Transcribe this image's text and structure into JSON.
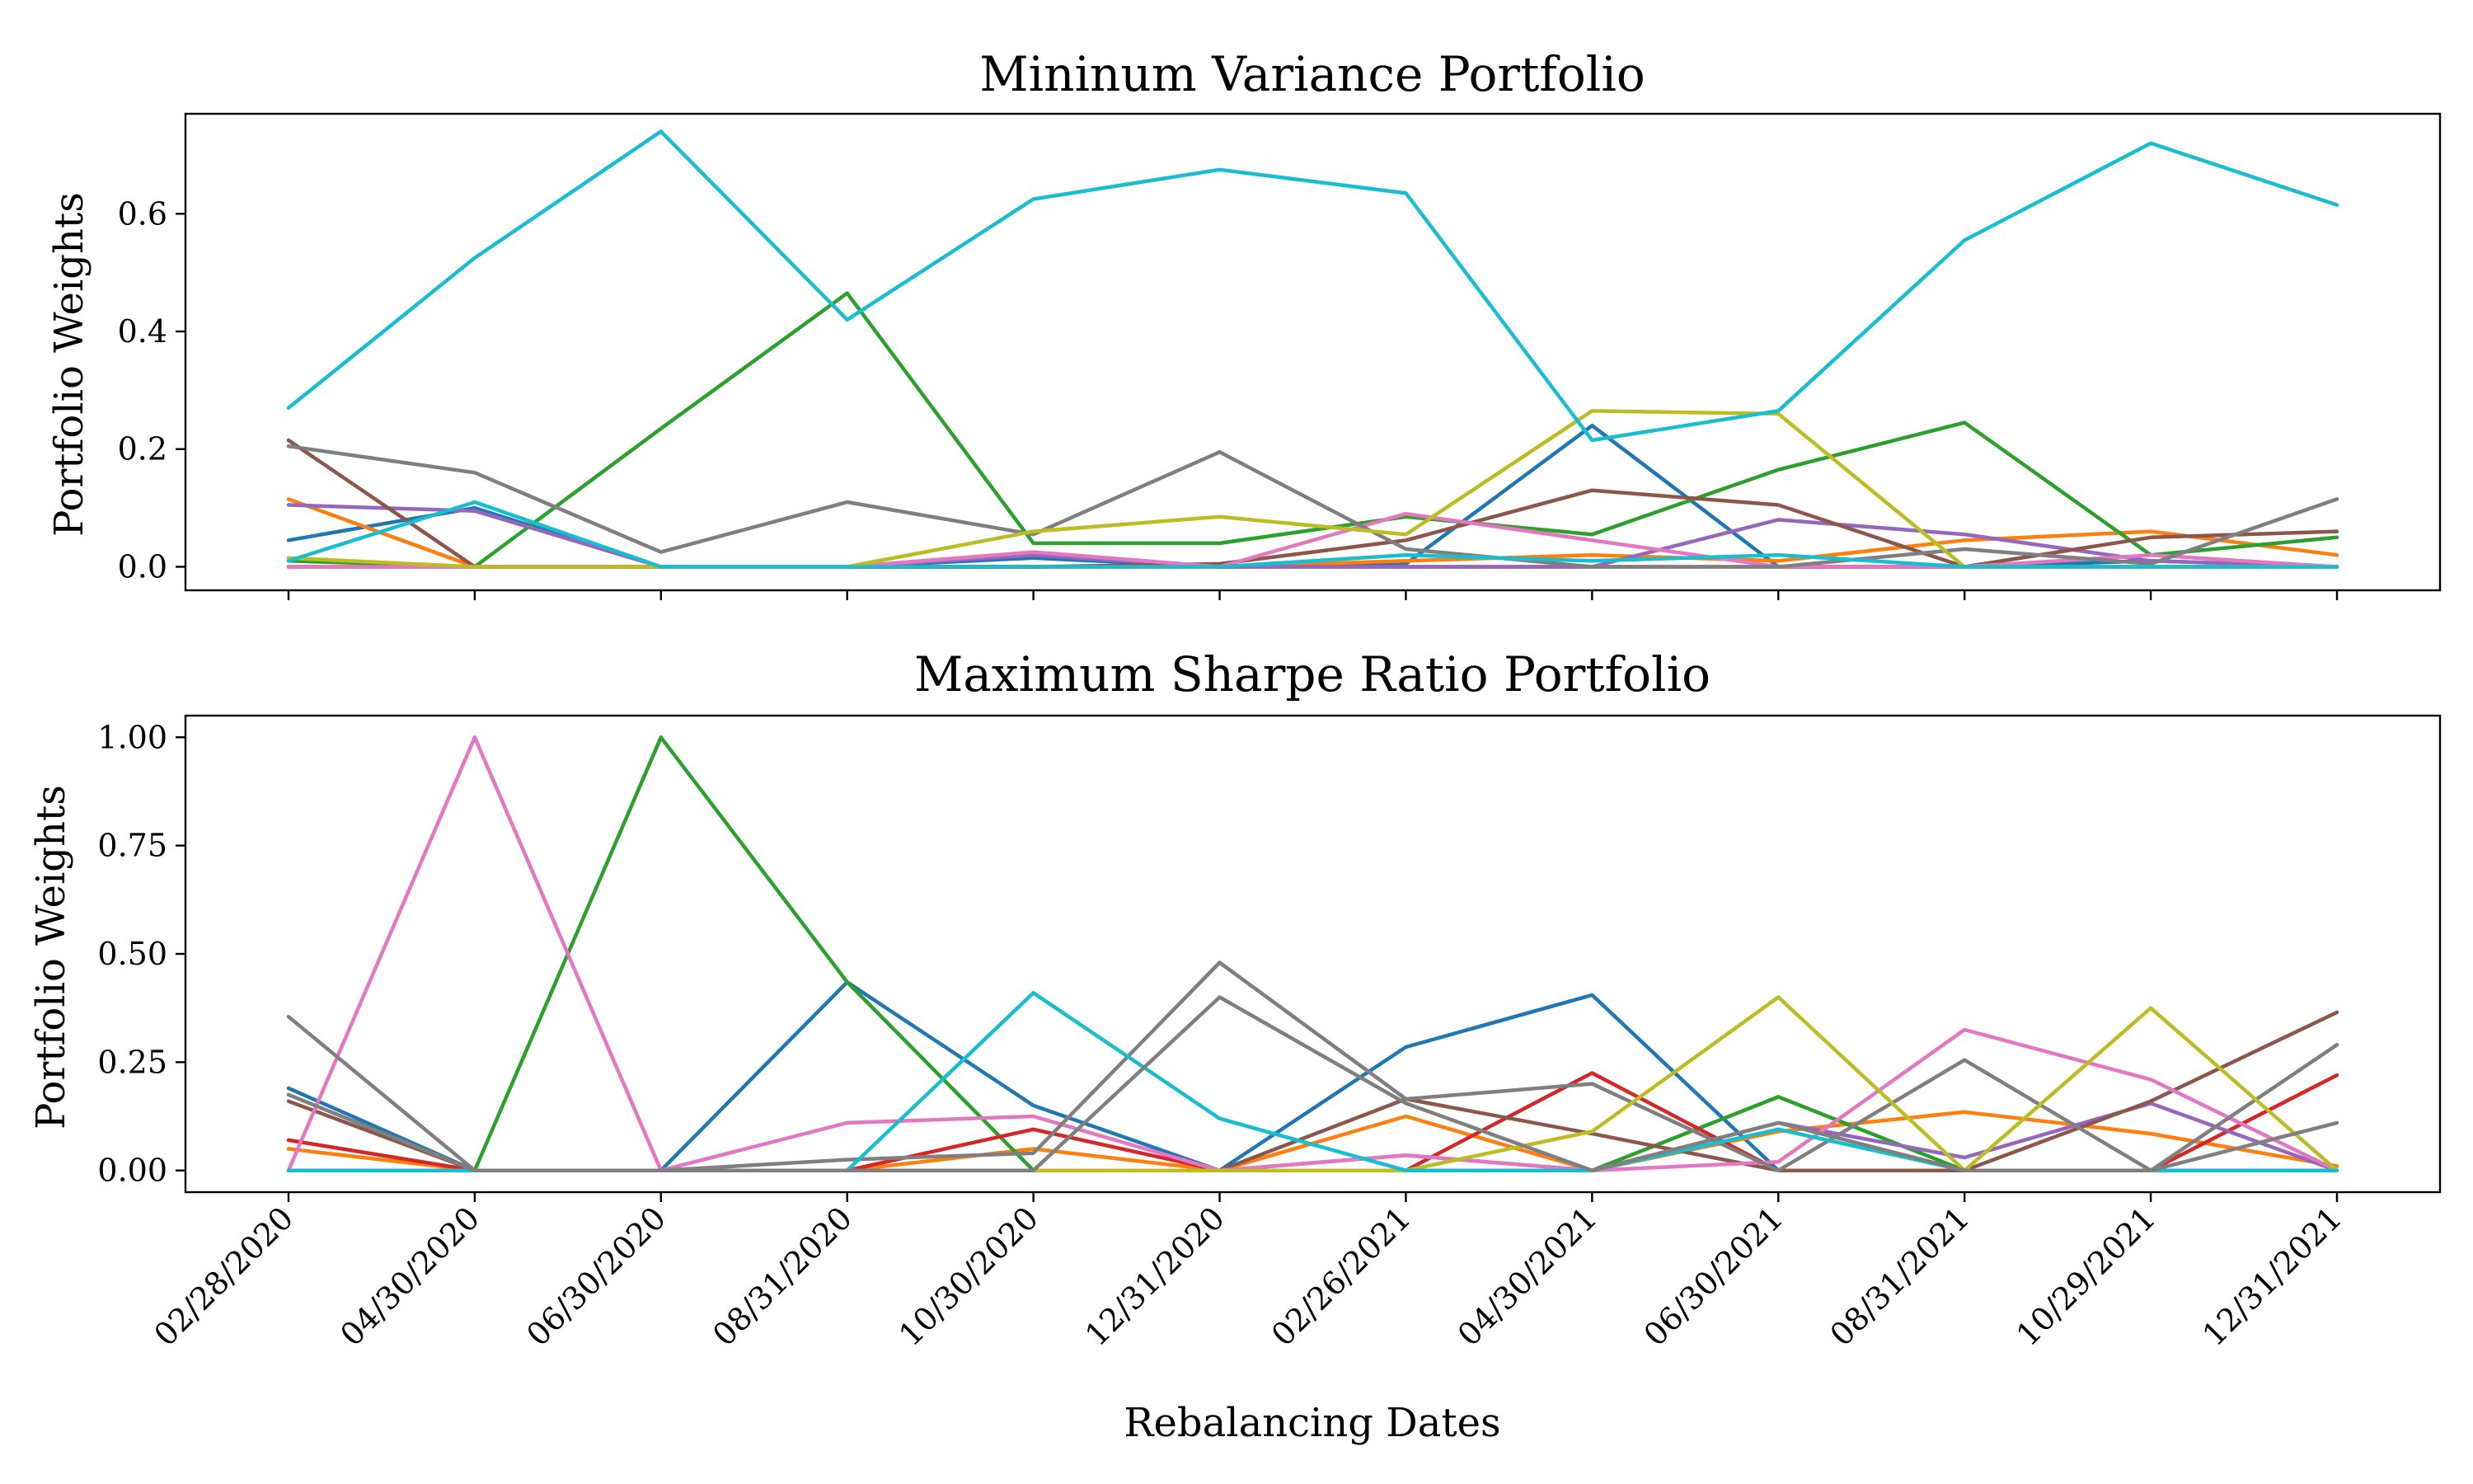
{
  "chart_data": [
    {
      "type": "line",
      "title": "Mininum Variance Portfolio",
      "xlabel": "",
      "ylabel": "Portfolio Weights",
      "x": [
        "02/28/2020",
        "04/30/2020",
        "06/30/2020",
        "08/31/2020",
        "10/30/2020",
        "12/31/2020",
        "02/26/2021",
        "04/30/2021",
        "06/30/2021",
        "08/31/2021",
        "10/29/2021",
        "12/31/2021"
      ],
      "ylim": [
        -0.04,
        0.77
      ],
      "yticks": [
        0.0,
        0.2,
        0.4,
        0.6
      ],
      "ytick_labels": [
        "0.0",
        "0.2",
        "0.4",
        "0.6"
      ],
      "show_xtick_labels": false,
      "grid": false,
      "series": [
        {
          "color": "#1f77b4",
          "values": [
            0.045,
            0.1,
            0.0,
            0.0,
            0.015,
            0.0,
            0.005,
            0.24,
            0.0,
            0.0,
            0.01,
            0.0
          ]
        },
        {
          "color": "#ff7f0e",
          "values": [
            0.115,
            0.0,
            0.0,
            0.0,
            0.0,
            0.0,
            0.01,
            0.02,
            0.01,
            0.045,
            0.06,
            0.02
          ]
        },
        {
          "color": "#2ca02c",
          "values": [
            0.01,
            0.0,
            0.235,
            0.465,
            0.04,
            0.04,
            0.085,
            0.055,
            0.165,
            0.245,
            0.02,
            0.05
          ]
        },
        {
          "color": "#d62728",
          "values": [
            0.0,
            0.0,
            0.0,
            0.0,
            0.0,
            0.0,
            0.0,
            0.0,
            0.0,
            0.0,
            0.0,
            0.0
          ]
        },
        {
          "color": "#9467bd",
          "values": [
            0.105,
            0.095,
            0.0,
            0.0,
            0.02,
            0.0,
            0.0,
            0.0,
            0.08,
            0.055,
            0.01,
            0.0
          ]
        },
        {
          "color": "#8c564b",
          "values": [
            0.215,
            0.0,
            0.0,
            0.0,
            0.0,
            0.005,
            0.045,
            0.13,
            0.105,
            0.0,
            0.05,
            0.06
          ]
        },
        {
          "color": "#e377c2",
          "values": [
            0.0,
            0.0,
            0.0,
            0.0,
            0.025,
            0.0,
            0.09,
            0.045,
            0.0,
            0.0,
            0.02,
            0.0
          ]
        },
        {
          "color": "#7f7f7f",
          "values": [
            0.205,
            0.16,
            0.025,
            0.11,
            0.055,
            0.195,
            0.03,
            0.0,
            0.0,
            0.03,
            0.005,
            0.115
          ]
        },
        {
          "color": "#bcbd22",
          "values": [
            0.015,
            0.0,
            0.0,
            0.0,
            0.06,
            0.085,
            0.055,
            0.265,
            0.26,
            0.0,
            0.0,
            0.0
          ]
        },
        {
          "color": "#17becf",
          "values": [
            0.27,
            0.525,
            0.74,
            0.42,
            0.625,
            0.675,
            0.635,
            0.215,
            0.265,
            0.555,
            0.72,
            0.615
          ]
        },
        {
          "color": "#17becf",
          "values": [
            0.01,
            0.11,
            0.0,
            0.0,
            0.0,
            0.0,
            0.02,
            0.01,
            0.02,
            0.0,
            0.0,
            0.0
          ]
        }
      ]
    },
    {
      "type": "line",
      "title": "Maximum Sharpe Ratio Portfolio",
      "xlabel": "Rebalancing Dates",
      "ylabel": "Portfolio Weights",
      "x": [
        "02/28/2020",
        "04/30/2020",
        "06/30/2020",
        "08/31/2020",
        "10/30/2020",
        "12/31/2020",
        "02/26/2021",
        "04/30/2021",
        "06/30/2021",
        "08/31/2021",
        "10/29/2021",
        "12/31/2021"
      ],
      "ylim": [
        -0.05,
        1.05
      ],
      "yticks": [
        0.0,
        0.25,
        0.5,
        0.75,
        1.0
      ],
      "ytick_labels": [
        "0.00",
        "0.25",
        "0.50",
        "0.75",
        "1.00"
      ],
      "show_xtick_labels": true,
      "grid": false,
      "series": [
        {
          "color": "#1f77b4",
          "values": [
            0.19,
            0.0,
            0.0,
            0.435,
            0.15,
            0.0,
            0.285,
            0.405,
            0.0,
            0.0,
            0.0,
            0.0
          ]
        },
        {
          "color": "#ff7f0e",
          "values": [
            0.05,
            0.0,
            0.0,
            0.0,
            0.05,
            0.0,
            0.125,
            0.0,
            0.09,
            0.135,
            0.085,
            0.01
          ]
        },
        {
          "color": "#2ca02c",
          "values": [
            0.0,
            0.0,
            1.0,
            0.435,
            0.0,
            0.0,
            0.0,
            0.0,
            0.17,
            0.0,
            0.0,
            0.0
          ]
        },
        {
          "color": "#d62728",
          "values": [
            0.07,
            0.0,
            0.0,
            0.0,
            0.095,
            0.0,
            0.0,
            0.225,
            0.0,
            0.0,
            0.0,
            0.22
          ]
        },
        {
          "color": "#9467bd",
          "values": [
            0.0,
            0.0,
            0.0,
            0.0,
            0.0,
            0.0,
            0.035,
            0.0,
            0.11,
            0.03,
            0.155,
            0.0
          ]
        },
        {
          "color": "#8c564b",
          "values": [
            0.16,
            0.0,
            0.0,
            0.0,
            0.0,
            0.0,
            0.165,
            0.085,
            0.0,
            0.0,
            0.16,
            0.365
          ]
        },
        {
          "color": "#e377c2",
          "values": [
            0.0,
            1.0,
            0.0,
            0.11,
            0.125,
            0.0,
            0.035,
            0.0,
            0.02,
            0.325,
            0.21,
            0.0
          ]
        },
        {
          "color": "#7f7f7f",
          "values": [
            0.355,
            0.0,
            0.0,
            0.025,
            0.04,
            0.48,
            0.165,
            0.2,
            0.0,
            0.255,
            0.0,
            0.29
          ]
        },
        {
          "color": "#bcbd22",
          "values": [
            0.0,
            0.0,
            0.0,
            0.0,
            0.0,
            0.0,
            0.0,
            0.09,
            0.4,
            0.0,
            0.375,
            0.0
          ]
        },
        {
          "color": "#17becf",
          "values": [
            0.0,
            0.0,
            0.0,
            0.0,
            0.41,
            0.12,
            0.0,
            0.0,
            0.095,
            0.0,
            0.0,
            0.0
          ]
        },
        {
          "color": "#7f7f7f",
          "values": [
            0.175,
            0.0,
            0.0,
            0.0,
            0.0,
            0.4,
            0.155,
            0.0,
            0.11,
            0.0,
            0.0,
            0.11
          ]
        }
      ]
    }
  ]
}
